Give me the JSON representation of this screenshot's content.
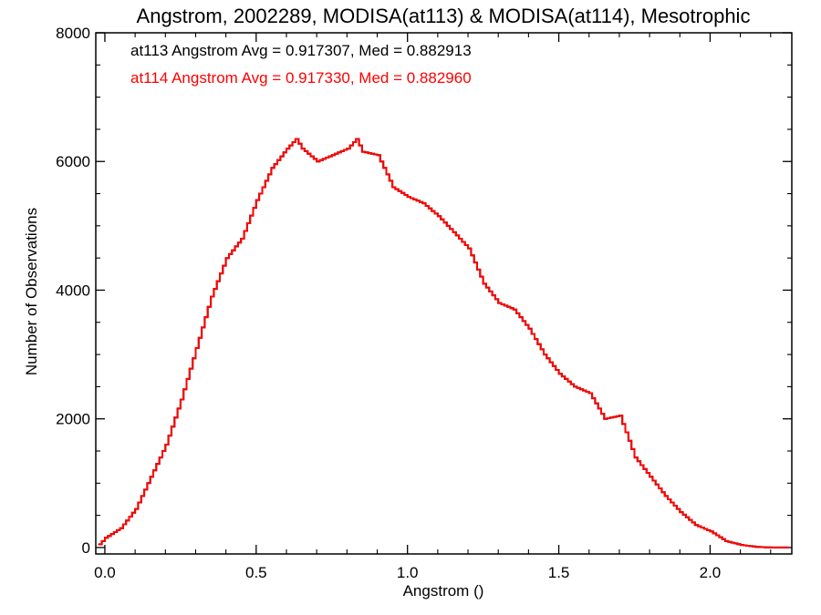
{
  "chart_data": {
    "type": "line",
    "title": "Angstrom, 2002289, MODISA(at113) & MODISA(at114), Mesotrophic",
    "xlabel": "Angstrom ()",
    "ylabel": "Number of Observations",
    "xlim": [
      -0.03,
      2.27
    ],
    "ylim": [
      -100,
      8000
    ],
    "x_ticks": [
      0.0,
      0.5,
      1.0,
      1.5,
      2.0
    ],
    "x_tick_labels": [
      "0.0",
      "0.5",
      "1.0",
      "1.5",
      "2.0"
    ],
    "y_ticks": [
      0,
      2000,
      4000,
      6000,
      8000
    ],
    "y_tick_labels": [
      "0",
      "2000",
      "4000",
      "6000",
      "8000"
    ],
    "grid": false,
    "step": "histogram",
    "annotations": [
      {
        "text": "at113 Angstrom Avg = 0.917307, Med = 0.882913",
        "color": "#000000"
      },
      {
        "text": "at114 Angstrom Avg = 0.917330, Med = 0.882960",
        "color": "#ff0000"
      }
    ],
    "series": [
      {
        "name": "at113",
        "color": "#000000",
        "x": [
          -0.02,
          0.0,
          0.05,
          0.1,
          0.15,
          0.2,
          0.25,
          0.3,
          0.35,
          0.4,
          0.45,
          0.5,
          0.55,
          0.6,
          0.63,
          0.65,
          0.7,
          0.75,
          0.8,
          0.83,
          0.85,
          0.9,
          0.95,
          1.0,
          1.05,
          1.1,
          1.15,
          1.2,
          1.25,
          1.3,
          1.35,
          1.4,
          1.45,
          1.5,
          1.55,
          1.6,
          1.65,
          1.7,
          1.75,
          1.8,
          1.85,
          1.9,
          1.95,
          2.0,
          2.05,
          2.1,
          2.15,
          2.2,
          2.26
        ],
        "y": [
          50,
          150,
          300,
          600,
          1100,
          1600,
          2300,
          3100,
          3900,
          4500,
          4800,
          5400,
          5900,
          6200,
          6350,
          6200,
          6000,
          6100,
          6200,
          6350,
          6150,
          6100,
          5600,
          5450,
          5350,
          5150,
          4900,
          4650,
          4100,
          3800,
          3700,
          3400,
          3000,
          2700,
          2500,
          2400,
          2000,
          2050,
          1400,
          1100,
          800,
          550,
          350,
          250,
          100,
          40,
          10,
          0,
          0
        ]
      },
      {
        "name": "at114",
        "color": "#ff0000",
        "x": [
          -0.02,
          0.0,
          0.05,
          0.1,
          0.15,
          0.2,
          0.25,
          0.3,
          0.35,
          0.4,
          0.45,
          0.5,
          0.55,
          0.6,
          0.63,
          0.65,
          0.7,
          0.75,
          0.8,
          0.83,
          0.85,
          0.9,
          0.95,
          1.0,
          1.05,
          1.1,
          1.15,
          1.2,
          1.25,
          1.3,
          1.35,
          1.4,
          1.45,
          1.5,
          1.55,
          1.6,
          1.65,
          1.7,
          1.75,
          1.8,
          1.85,
          1.9,
          1.95,
          2.0,
          2.05,
          2.1,
          2.15,
          2.2,
          2.26
        ],
        "y": [
          50,
          150,
          300,
          600,
          1100,
          1600,
          2300,
          3100,
          3900,
          4500,
          4800,
          5400,
          5900,
          6200,
          6350,
          6200,
          6000,
          6100,
          6200,
          6350,
          6150,
          6100,
          5600,
          5450,
          5350,
          5150,
          4900,
          4650,
          4100,
          3800,
          3700,
          3400,
          3000,
          2700,
          2500,
          2400,
          2000,
          2050,
          1400,
          1100,
          800,
          550,
          350,
          250,
          100,
          40,
          10,
          0,
          0
        ]
      }
    ]
  }
}
